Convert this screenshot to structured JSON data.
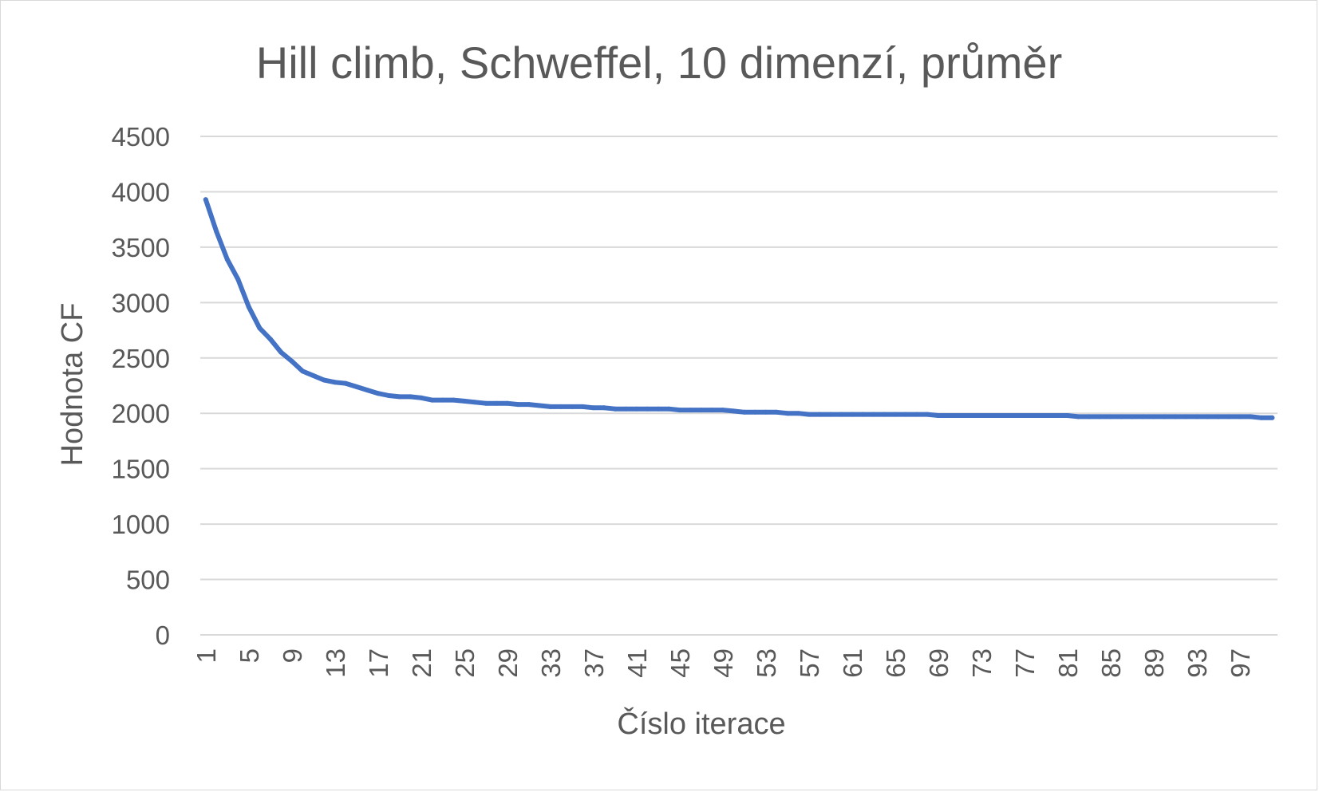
{
  "chart_data": {
    "type": "line",
    "title": "Hill climb, Schweffel, 10 dimenzí, průměr",
    "xlabel": "Číslo iterace",
    "ylabel": "Hodnota CF",
    "ylim": [
      0,
      4500
    ],
    "ytick_step": 500,
    "grid": true,
    "legend": "none",
    "x_tick_labels": [
      "1",
      "5",
      "9",
      "13",
      "17",
      "21",
      "25",
      "29",
      "33",
      "37",
      "41",
      "45",
      "49",
      "53",
      "57",
      "61",
      "65",
      "69",
      "73",
      "77",
      "81",
      "85",
      "89",
      "93",
      "97"
    ],
    "x": [
      1,
      2,
      3,
      4,
      5,
      6,
      7,
      8,
      9,
      10,
      11,
      12,
      13,
      14,
      15,
      16,
      17,
      18,
      19,
      20,
      21,
      22,
      23,
      24,
      25,
      26,
      27,
      28,
      29,
      30,
      31,
      32,
      33,
      34,
      35,
      36,
      37,
      38,
      39,
      40,
      41,
      42,
      43,
      44,
      45,
      46,
      47,
      48,
      49,
      50,
      51,
      52,
      53,
      54,
      55,
      56,
      57,
      58,
      59,
      60,
      61,
      62,
      63,
      64,
      65,
      66,
      67,
      68,
      69,
      70,
      71,
      72,
      73,
      74,
      75,
      76,
      77,
      78,
      79,
      80,
      81,
      82,
      83,
      84,
      85,
      86,
      87,
      88,
      89,
      90,
      91,
      92,
      93,
      94,
      95,
      96,
      97,
      98,
      99,
      100
    ],
    "series": [
      {
        "color": "#4472c4",
        "values": [
          3930,
          3640,
          3390,
          3210,
          2960,
          2770,
          2670,
          2550,
          2470,
          2380,
          2340,
          2300,
          2280,
          2270,
          2240,
          2210,
          2180,
          2160,
          2150,
          2150,
          2140,
          2120,
          2120,
          2120,
          2110,
          2100,
          2090,
          2090,
          2090,
          2080,
          2080,
          2070,
          2060,
          2060,
          2060,
          2060,
          2050,
          2050,
          2040,
          2040,
          2040,
          2040,
          2040,
          2040,
          2030,
          2030,
          2030,
          2030,
          2030,
          2020,
          2010,
          2010,
          2010,
          2010,
          2000,
          2000,
          1990,
          1990,
          1990,
          1990,
          1990,
          1990,
          1990,
          1990,
          1990,
          1990,
          1990,
          1990,
          1980,
          1980,
          1980,
          1980,
          1980,
          1980,
          1980,
          1980,
          1980,
          1980,
          1980,
          1980,
          1980,
          1970,
          1970,
          1970,
          1970,
          1970,
          1970,
          1970,
          1970,
          1970,
          1970,
          1970,
          1970,
          1970,
          1970,
          1970,
          1970,
          1970,
          1960,
          1960
        ]
      }
    ]
  }
}
